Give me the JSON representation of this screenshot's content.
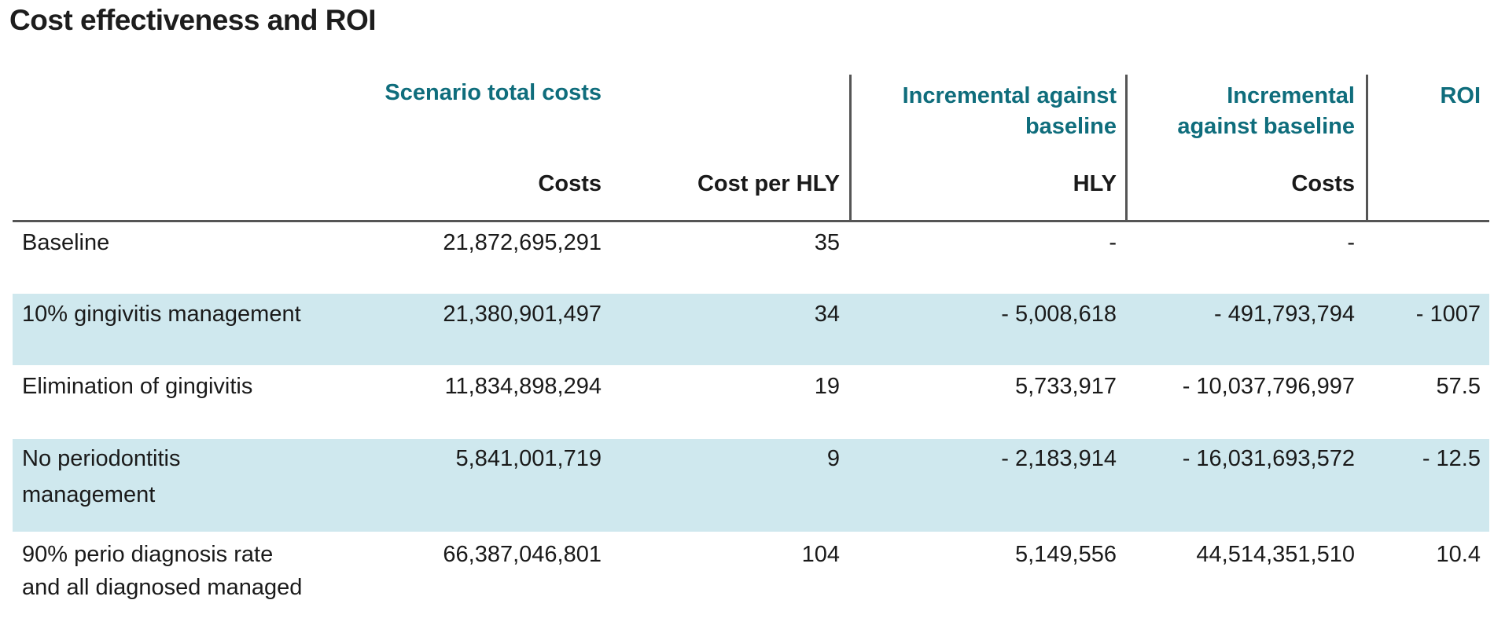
{
  "title": "Cost effectiveness and ROI",
  "header": {
    "group_scenario": "Scenario total costs",
    "group_incremental_hly_line1": "Incremental against",
    "group_incremental_hly_line2": "baseline",
    "group_incremental_costs_line1": "Incremental",
    "group_incremental_costs_line2": "against baseline",
    "group_roi": "ROI",
    "col_costs": "Costs",
    "col_cost_per_hly": "Cost per HLY",
    "col_hly": "HLY",
    "col_inc_costs": "Costs"
  },
  "rows": [
    {
      "scenario": [
        "Baseline"
      ],
      "costs": "21,872,695,291",
      "cost_per_hly": "35",
      "hly": "-",
      "inc_costs": "-",
      "roi": "",
      "shaded": false
    },
    {
      "scenario": [
        "10% gingivitis management"
      ],
      "costs": "21,380,901,497",
      "cost_per_hly": "34",
      "hly": "- 5,008,618",
      "inc_costs": "- 491,793,794",
      "roi": "- 1007",
      "shaded": true
    },
    {
      "scenario": [
        "Elimination of gingivitis"
      ],
      "costs": "11,834,898,294",
      "cost_per_hly": "19",
      "hly": "5,733,917",
      "inc_costs": "- 10,037,796,997",
      "roi": "57.5",
      "shaded": false
    },
    {
      "scenario": [
        "No periodontitis",
        "management"
      ],
      "costs": "5,841,001,719",
      "cost_per_hly": "9",
      "hly": "- 2,183,914",
      "inc_costs": "- 16,031,693,572",
      "roi": "- 12.5",
      "shaded": true
    },
    {
      "scenario": [
        "90% perio diagnosis rate",
        "and all diagnosed managed"
      ],
      "costs": "66,387,046,801",
      "cost_per_hly": "104",
      "hly": "5,149,556",
      "inc_costs": "44,514,351,510",
      "roi": "10.4",
      "shaded": false
    }
  ],
  "colors": {
    "accent": "#0f6d7c",
    "band": "#cfe8ee",
    "rule": "#555555"
  }
}
